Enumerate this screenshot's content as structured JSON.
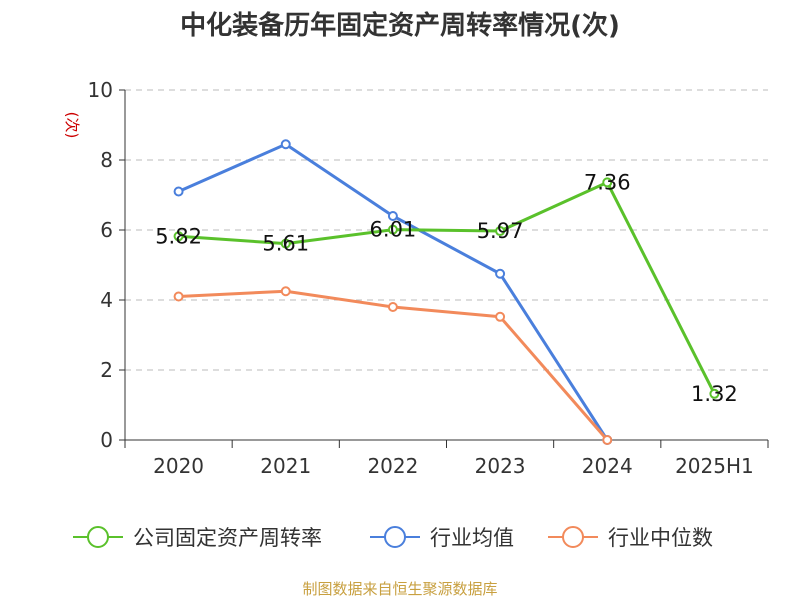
{
  "chart_data": {
    "type": "line",
    "title": "中化装备历年固定资产周转率情况(次)",
    "ylabel": "(次)",
    "xlabel": "",
    "ylim": [
      0,
      10
    ],
    "yticks": [
      "0",
      "2",
      "4",
      "6",
      "8",
      "10"
    ],
    "categories": [
      "2020",
      "2021",
      "2022",
      "2023",
      "2024",
      "2025H1"
    ],
    "grid": true,
    "legend_position": "bottom",
    "series": [
      {
        "name": "公司固定资产周转率",
        "color": "#5ac12b",
        "values": [
          5.82,
          5.61,
          6.01,
          5.97,
          7.36,
          1.32
        ],
        "labels": [
          "5.82",
          "5.61",
          "6.01",
          "5.97",
          "7.36",
          "1.32"
        ]
      },
      {
        "name": "行业均值",
        "color": "#4a7fdc",
        "values": [
          7.1,
          8.45,
          6.4,
          4.75,
          0,
          null
        ]
      },
      {
        "name": "行业中位数",
        "color": "#f28a5b",
        "values": [
          4.1,
          4.25,
          3.8,
          3.52,
          0,
          null
        ]
      }
    ],
    "source": "制图数据来自恒生聚源数据库"
  }
}
